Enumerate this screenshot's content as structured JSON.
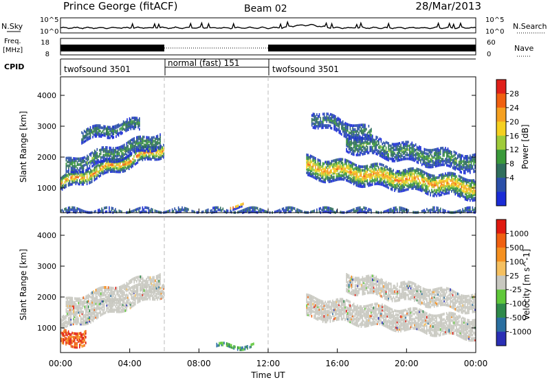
{
  "header": {
    "station": "Prince George (fitACF)",
    "beam": "Beam 02",
    "date": "28/Mar/2013"
  },
  "nsky_panel": {
    "left_label": "N.Sky",
    "right_label": "N.Search",
    "left_ticks": [
      "10^5",
      "10^0"
    ],
    "right_ticks": [
      "10^5",
      "10^0"
    ]
  },
  "freq_panel": {
    "left_label_line1": "Freq.",
    "left_label_line2": "[MHz]",
    "right_label": "Nave",
    "left_ticks": [
      "18",
      "8"
    ],
    "right_ticks": [
      "60",
      "0"
    ]
  },
  "cpid_panel": {
    "label": "CPID",
    "segments": [
      {
        "start": 0,
        "end": 6,
        "text": "twofsound 3501"
      },
      {
        "start": 6,
        "end": 12,
        "text": "normal (fast) 151"
      },
      {
        "start": 12,
        "end": 24,
        "text": "twofsound 3501"
      }
    ]
  },
  "chart_data": [
    {
      "type": "heatmap",
      "quantity": "power",
      "xlabel": "",
      "ylabel": "Slant Range [km]",
      "xlim": [
        0,
        24
      ],
      "ylim": [
        200,
        4600
      ],
      "yticks": [
        1000,
        2000,
        3000,
        4000
      ],
      "dashed_lines_hours": [
        6,
        12
      ],
      "colorbar": {
        "label": "Power [dB]",
        "ticks": [
          "4",
          "8",
          "12",
          "16",
          "20",
          "24",
          "28"
        ],
        "colors": [
          "#1a2cd6",
          "#2a4fa8",
          "#2f6e5c",
          "#3a9a3a",
          "#9fcb3a",
          "#f5d020",
          "#f5a020",
          "#f06010",
          "#e0201a"
        ]
      },
      "bands": [
        {
          "t0": 0.0,
          "t1": 6.0,
          "r0_start": 1150,
          "r0_end": 2300,
          "width": 450,
          "peak": 22
        },
        {
          "t0": 0.3,
          "t1": 5.8,
          "r0_start": 1700,
          "r0_end": 2600,
          "width": 500,
          "peak": 10
        },
        {
          "t0": 1.2,
          "t1": 4.6,
          "r0_start": 2700,
          "r0_end": 3100,
          "width": 400,
          "peak": 9
        },
        {
          "t0": 14.2,
          "t1": 24.0,
          "r0_start": 1700,
          "r0_end": 1000,
          "width": 700,
          "peak": 22
        },
        {
          "t0": 16.5,
          "t1": 24.0,
          "r0_start": 2500,
          "r0_end": 1800,
          "width": 600,
          "peak": 10
        },
        {
          "t0": 14.5,
          "t1": 18.0,
          "r0_start": 3300,
          "r0_end": 2700,
          "width": 500,
          "peak": 8
        },
        {
          "t0": 0.0,
          "t1": 24.0,
          "r0_start": 250,
          "r0_end": 250,
          "width": 200,
          "peak": 6
        },
        {
          "t0": 9.8,
          "t1": 10.6,
          "r0_start": 420,
          "r0_end": 420,
          "width": 120,
          "peak": 20
        }
      ]
    },
    {
      "type": "heatmap",
      "quantity": "velocity",
      "xlabel": "Time UT",
      "ylabel": "Slant Range [km]",
      "xlim": [
        0,
        24
      ],
      "ylim": [
        200,
        4600
      ],
      "yticks": [
        1000,
        2000,
        3000,
        4000
      ],
      "xticks": [
        "00:00",
        "04:00",
        "08:00",
        "12:00",
        "16:00",
        "20:00",
        "00:00"
      ],
      "dashed_lines_hours": [
        6,
        12
      ],
      "colorbar": {
        "label": "Velocity [m s^-1]",
        "ticks": [
          "1000",
          "500",
          "100",
          "25",
          "-25",
          "-100",
          "-500",
          "-1000"
        ],
        "colors": [
          "#2a2fb5",
          "#2a6fa0",
          "#2f8a4a",
          "#5fc83a",
          "#c8c8c0",
          "#f5c060",
          "#f59020",
          "#f06010",
          "#e01a10"
        ]
      },
      "bands": [
        {
          "t0": 0.0,
          "t1": 6.0,
          "r0_start": 1150,
          "r0_end": 2300,
          "width": 450,
          "vel": "ground"
        },
        {
          "t0": 0.3,
          "t1": 5.8,
          "r0_start": 1700,
          "r0_end": 2600,
          "width": 500,
          "vel": "ground"
        },
        {
          "t0": 0.0,
          "t1": 1.5,
          "r0_start": 700,
          "r0_end": 700,
          "width": 500,
          "vel": "negative"
        },
        {
          "t0": 14.2,
          "t1": 24.0,
          "r0_start": 1700,
          "r0_end": 1000,
          "width": 700,
          "vel": "ground"
        },
        {
          "t0": 16.5,
          "t1": 24.0,
          "r0_start": 2500,
          "r0_end": 1800,
          "width": 600,
          "vel": "ground"
        },
        {
          "t0": 9.0,
          "t1": 11.2,
          "r0_start": 430,
          "r0_end": 430,
          "width": 120,
          "vel": "positive"
        }
      ]
    }
  ]
}
